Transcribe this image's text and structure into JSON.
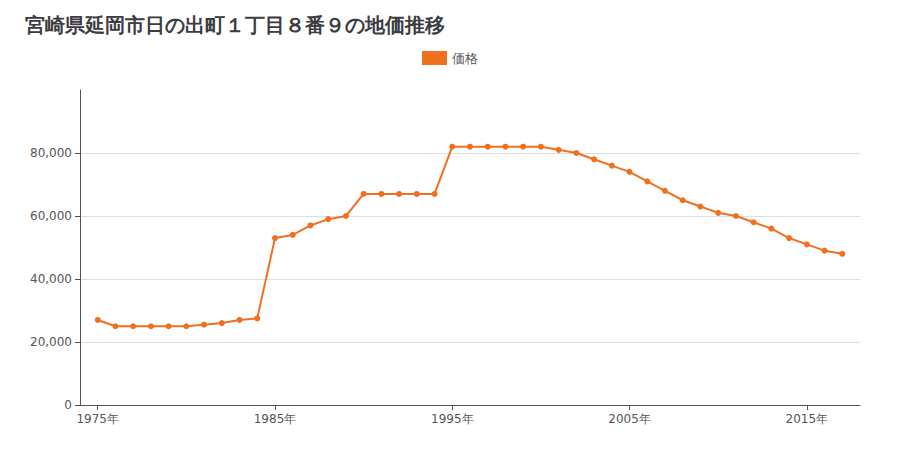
{
  "chart_data": {
    "type": "line",
    "title": "宮崎県延岡市日の出町１丁目８番９の地価推移",
    "x": [
      1975,
      1976,
      1977,
      1978,
      1979,
      1980,
      1981,
      1982,
      1983,
      1984,
      1985,
      1986,
      1987,
      1988,
      1989,
      1990,
      1991,
      1992,
      1993,
      1994,
      1995,
      1996,
      1997,
      1998,
      1999,
      2000,
      2001,
      2002,
      2003,
      2004,
      2005,
      2006,
      2007,
      2008,
      2009,
      2010,
      2011,
      2012,
      2013,
      2014,
      2015,
      2016,
      2017
    ],
    "series": [
      {
        "name": "価格",
        "color": "#F07020",
        "marker": "circle",
        "values": [
          27000,
          25000,
          25000,
          25000,
          25000,
          25000,
          25500,
          26000,
          27000,
          27500,
          53000,
          54000,
          57000,
          59000,
          60000,
          67000,
          67000,
          67000,
          67000,
          67000,
          82000,
          82000,
          82000,
          82000,
          82000,
          82000,
          81000,
          80000,
          78000,
          76000,
          74000,
          71000,
          68000,
          65000,
          63000,
          61000,
          60000,
          58000,
          56000,
          53000,
          51000,
          49000,
          48000
        ]
      }
    ],
    "xlim": [
      1974,
      2018
    ],
    "xticks": [
      {
        "value": 1975,
        "label": "1975年"
      },
      {
        "value": 1985,
        "label": "1985年"
      },
      {
        "value": 1995,
        "label": "1995年"
      },
      {
        "value": 2005,
        "label": "2005年"
      },
      {
        "value": 2015,
        "label": "2015年"
      }
    ],
    "ylim": [
      0,
      100000
    ],
    "yticks": [
      0,
      {
        "value": 20000,
        "label": "20,000"
      },
      {
        "value": 40000,
        "label": "40,000"
      },
      {
        "value": 60000,
        "label": "60,000"
      },
      {
        "value": 80000,
        "label": "80,000"
      }
    ],
    "grid": true,
    "legend": "top"
  }
}
